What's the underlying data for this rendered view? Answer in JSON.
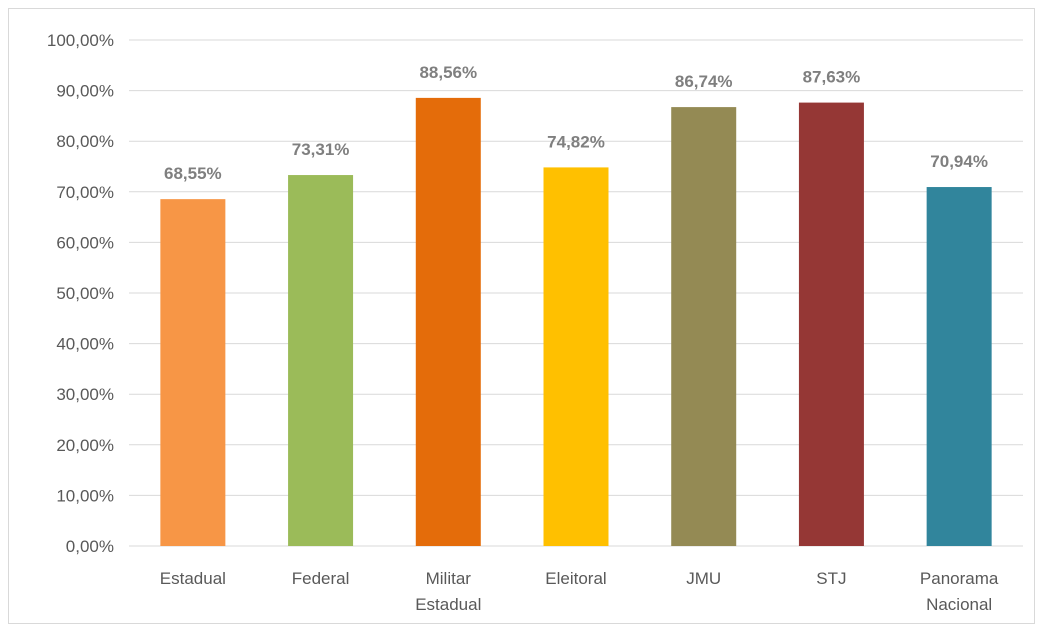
{
  "chart_data": {
    "type": "bar",
    "categories": [
      [
        "Estadual"
      ],
      [
        "Federal"
      ],
      [
        "Militar",
        "Estadual"
      ],
      [
        "Eleitoral"
      ],
      [
        "JMU"
      ],
      [
        "STJ"
      ],
      [
        "Panorama",
        "Nacional"
      ]
    ],
    "values": [
      68.55,
      73.31,
      88.56,
      74.82,
      86.74,
      87.63,
      70.94
    ],
    "data_labels": [
      "68,55%",
      "73,31%",
      "88,56%",
      "74,82%",
      "86,74%",
      "87,63%",
      "70,94%"
    ],
    "colors": [
      "#f79646",
      "#9bbb59",
      "#e46c0a",
      "#ffc000",
      "#948a54",
      "#953735",
      "#31859c"
    ],
    "ylim": [
      0,
      100
    ],
    "yticks": [
      0,
      10,
      20,
      30,
      40,
      50,
      60,
      70,
      80,
      90,
      100
    ],
    "ytick_labels": [
      "0,00%",
      "10,00%",
      "20,00%",
      "30,00%",
      "40,00%",
      "50,00%",
      "60,00%",
      "70,00%",
      "80,00%",
      "90,00%",
      "100,00%"
    ],
    "grid": true,
    "gridline_color": "#d9d9d9",
    "axis_color": "#d9d9d9",
    "text_color": "#595959",
    "data_label_color": "#7f7f7f",
    "title": "",
    "xlabel": "",
    "ylabel": ""
  }
}
